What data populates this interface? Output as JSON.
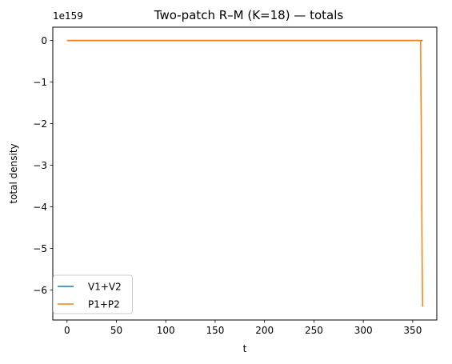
{
  "chart_data": {
    "type": "line",
    "title": "Two-patch R–M (K=18) — totals",
    "xlabel": "t",
    "ylabel": "total density",
    "y_offset_text": "1e159",
    "xlim": [
      -14.4,
      374.4
    ],
    "ylim": [
      -6.72,
      0.32
    ],
    "x_ticks": [
      0,
      50,
      100,
      150,
      200,
      250,
      300,
      350
    ],
    "x_tick_labels": [
      "0",
      "50",
      "100",
      "150",
      "200",
      "250",
      "300",
      "350"
    ],
    "y_ticks": [
      0,
      -1,
      -2,
      -3,
      -4,
      -5,
      -6
    ],
    "y_tick_labels": [
      "0",
      "−1",
      "−2",
      "−3",
      "−4",
      "−5",
      "−6"
    ],
    "grid": false,
    "legend_position": "lower-left",
    "series": [
      {
        "name": "V1+V2",
        "color": "#1f77b4",
        "x": [
          0,
          100,
          200,
          300,
          360
        ],
        "y": [
          0,
          0,
          0,
          0,
          0
        ]
      },
      {
        "name": "P1+P2",
        "color": "#ff7f0e",
        "x": [
          0,
          100,
          200,
          300,
          357,
          358,
          359.5,
          360
        ],
        "y": [
          0,
          0,
          0,
          0,
          0,
          0,
          -5,
          -6.4
        ]
      }
    ]
  }
}
